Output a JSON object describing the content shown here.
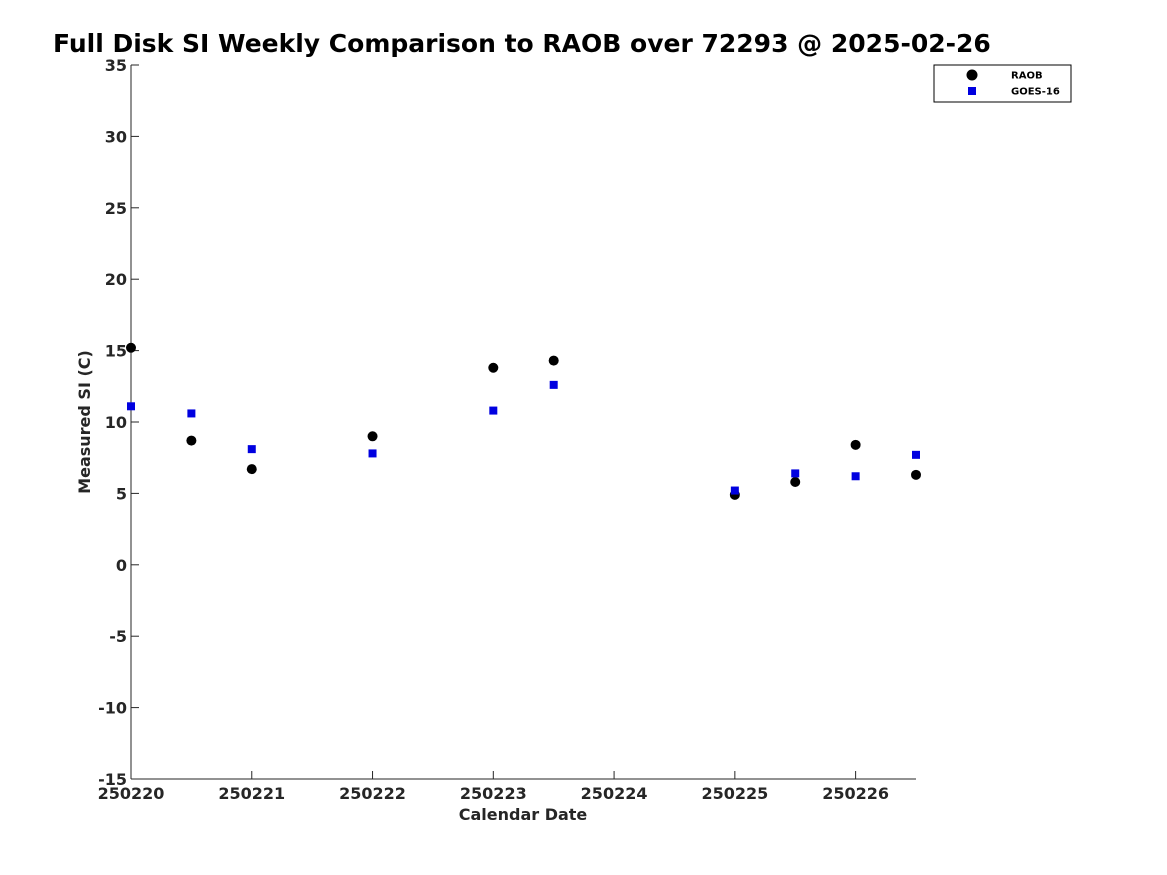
{
  "chart_data": {
    "type": "scatter",
    "title": "Full Disk SI Weekly Comparison to RAOB over 72293 @ 2025-02-26",
    "xlabel": "Calendar Date",
    "ylabel": "Measured SI (C)",
    "xlim": [
      0,
      6.5
    ],
    "ylim": [
      -15,
      35
    ],
    "x_ticks": [
      {
        "value": 0,
        "label": "250220"
      },
      {
        "value": 1,
        "label": "250221"
      },
      {
        "value": 2,
        "label": "250222"
      },
      {
        "value": 3,
        "label": "250223"
      },
      {
        "value": 4,
        "label": "250224"
      },
      {
        "value": 5,
        "label": "250225"
      },
      {
        "value": 6,
        "label": "250226"
      }
    ],
    "y_ticks": [
      35,
      30,
      25,
      20,
      15,
      10,
      5,
      0,
      -5,
      -10,
      -15
    ],
    "grid": false,
    "legend_position": "top-right",
    "series": [
      {
        "name": "RAOB",
        "marker": "circle",
        "color": "#000000",
        "points": [
          {
            "x": 0.0,
            "y": 15.2
          },
          {
            "x": 0.5,
            "y": 8.7
          },
          {
            "x": 1.0,
            "y": 6.7
          },
          {
            "x": 2.0,
            "y": 9.0
          },
          {
            "x": 3.0,
            "y": 13.8
          },
          {
            "x": 3.5,
            "y": 14.3
          },
          {
            "x": 5.0,
            "y": 4.9
          },
          {
            "x": 5.5,
            "y": 5.8
          },
          {
            "x": 6.0,
            "y": 8.4
          },
          {
            "x": 6.5,
            "y": 6.3
          }
        ]
      },
      {
        "name": "GOES-16",
        "marker": "square",
        "color": "#0000e0",
        "points": [
          {
            "x": 0.0,
            "y": 11.1
          },
          {
            "x": 0.5,
            "y": 10.6
          },
          {
            "x": 1.0,
            "y": 8.1
          },
          {
            "x": 2.0,
            "y": 7.8
          },
          {
            "x": 3.0,
            "y": 10.8
          },
          {
            "x": 3.5,
            "y": 12.6
          },
          {
            "x": 5.0,
            "y": 5.2
          },
          {
            "x": 5.5,
            "y": 6.4
          },
          {
            "x": 6.0,
            "y": 6.2
          },
          {
            "x": 6.5,
            "y": 7.7
          }
        ]
      }
    ]
  }
}
